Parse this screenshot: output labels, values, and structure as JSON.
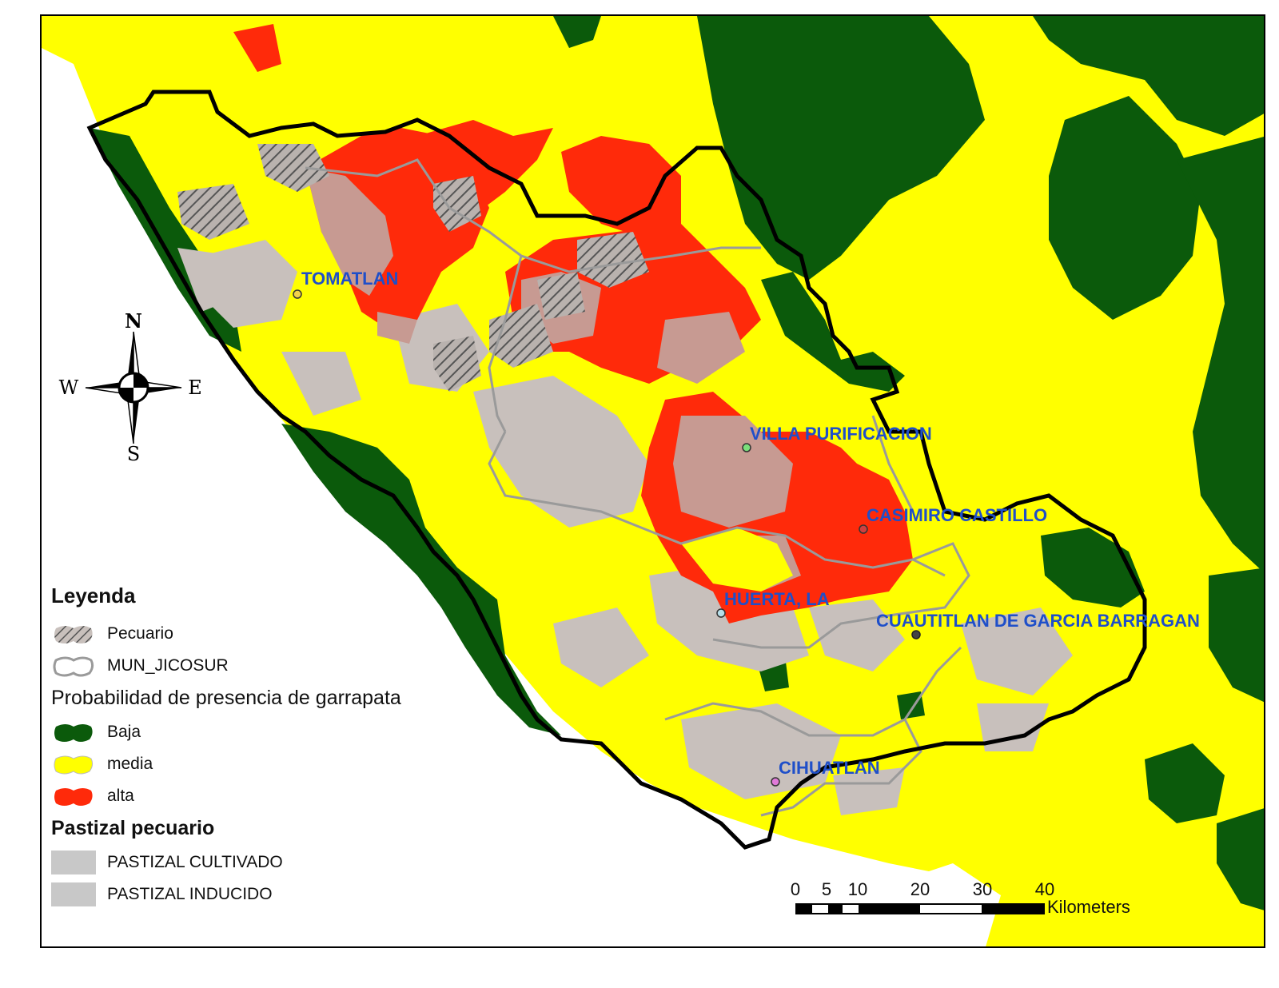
{
  "map": {
    "colors": {
      "baja": "#0b5a0b",
      "media": "#ffff00",
      "alta": "#ff2a0a",
      "pastizal": "#c8c0bc",
      "boundary": "#000000",
      "municipal": "#9a9a9a",
      "town_label": "#1f4fc9"
    }
  },
  "towns": [
    {
      "name": "TOMATLAN",
      "dot_color": "#f2d24a"
    },
    {
      "name": "VILLA PURIFICACION",
      "dot_color": "#7be07b"
    },
    {
      "name": "CASIMIRO CASTILLO",
      "dot_color": "#d04040"
    },
    {
      "name": "HUERTA, LA",
      "dot_color": "#b7dfe9"
    },
    {
      "name": "CUAUTITLAN DE GARCIA BARRAGAN",
      "dot_color": "#444444"
    },
    {
      "name": "CIHUATLAN",
      "dot_color": "#e07ad8"
    }
  ],
  "compass": {
    "n": "N",
    "s": "S",
    "e": "E",
    "w": "W"
  },
  "legend": {
    "title": "Leyenda",
    "pecuario": "Pecuario",
    "mun": "MUN_JICOSUR",
    "prob_title": "Probabilidad de presencia de garrapata",
    "baja": "Baja",
    "media": "media",
    "alta": "alta",
    "pastizal_title": "Pastizal pecuario",
    "cultivado": "PASTIZAL CULTIVADO",
    "inducido": "PASTIZAL INDUCIDO"
  },
  "scale": {
    "ticks": [
      "0",
      "5",
      "10",
      "20",
      "30",
      "40"
    ],
    "unit": "Kilometers"
  }
}
